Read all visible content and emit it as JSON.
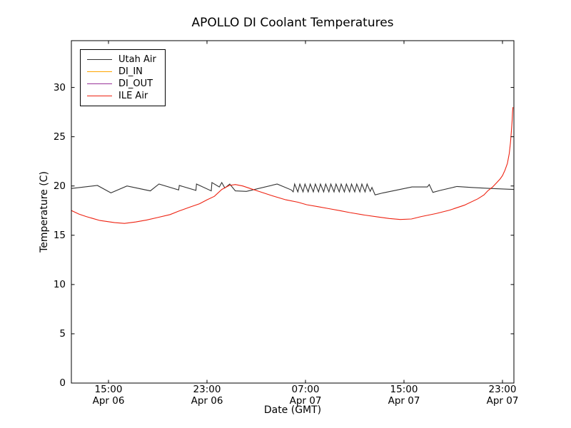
{
  "figure_title": "APOLLO DI Coolant Temperatures",
  "chart_data": {
    "type": "line",
    "title": "APOLLO DI Coolant Temperatures",
    "xlabel": "Date (GMT)",
    "ylabel": "Temperature (C)",
    "x_unit": "hours since Apr 06 00:00 GMT",
    "xlim_hours": [
      12.0,
      47.95
    ],
    "ylim": [
      0,
      34.75
    ],
    "grid": false,
    "legend_position": "upper left",
    "yticks": [
      0,
      5,
      10,
      15,
      20,
      25,
      30
    ],
    "xticks": [
      {
        "t": 15,
        "time": "15:00",
        "date": "Apr 06"
      },
      {
        "t": 23,
        "time": "23:00",
        "date": "Apr 06"
      },
      {
        "t": 31,
        "time": "07:00",
        "date": "Apr 07"
      },
      {
        "t": 39,
        "time": "15:00",
        "date": "Apr 07"
      },
      {
        "t": 47,
        "time": "23:00",
        "date": "Apr 07"
      }
    ],
    "series": [
      {
        "name": "Utah Air",
        "color": "#333333",
        "points": [
          [
            12.0,
            19.75
          ],
          [
            14.1,
            20.05
          ],
          [
            15.2,
            19.3
          ],
          [
            16.5,
            20.0
          ],
          [
            18.4,
            19.5
          ],
          [
            19.1,
            20.2
          ],
          [
            20.7,
            19.6
          ],
          [
            20.75,
            20.05
          ],
          [
            22.1,
            19.55
          ],
          [
            22.15,
            20.2
          ],
          [
            23.35,
            19.5
          ],
          [
            23.4,
            20.35
          ],
          [
            24.0,
            19.9
          ],
          [
            24.2,
            20.35
          ],
          [
            24.45,
            19.8
          ],
          [
            24.85,
            20.2
          ],
          [
            25.3,
            19.5
          ],
          [
            26.2,
            19.45
          ],
          [
            28.7,
            20.2
          ],
          [
            29.85,
            19.6
          ],
          [
            30.0,
            19.4
          ],
          [
            30.12,
            20.2
          ],
          [
            30.38,
            19.4
          ],
          [
            30.54,
            20.2
          ],
          [
            30.8,
            19.4
          ],
          [
            30.96,
            20.2
          ],
          [
            31.22,
            19.4
          ],
          [
            31.38,
            20.2
          ],
          [
            31.64,
            19.4
          ],
          [
            31.8,
            20.2
          ],
          [
            32.06,
            19.4
          ],
          [
            32.22,
            20.2
          ],
          [
            32.48,
            19.4
          ],
          [
            32.64,
            20.2
          ],
          [
            32.9,
            19.4
          ],
          [
            33.06,
            20.2
          ],
          [
            33.32,
            19.4
          ],
          [
            33.48,
            20.2
          ],
          [
            33.74,
            19.4
          ],
          [
            33.9,
            20.2
          ],
          [
            34.16,
            19.4
          ],
          [
            34.32,
            20.2
          ],
          [
            34.58,
            19.4
          ],
          [
            34.74,
            20.2
          ],
          [
            35.0,
            19.4
          ],
          [
            35.16,
            20.2
          ],
          [
            35.42,
            19.4
          ],
          [
            35.58,
            20.2
          ],
          [
            35.84,
            19.4
          ],
          [
            36.0,
            20.2
          ],
          [
            36.26,
            19.45
          ],
          [
            36.4,
            19.85
          ],
          [
            36.65,
            19.1
          ],
          [
            37.3,
            19.3
          ],
          [
            39.65,
            19.9
          ],
          [
            40.9,
            19.9
          ],
          [
            41.05,
            20.15
          ],
          [
            41.35,
            19.35
          ],
          [
            41.95,
            19.55
          ],
          [
            43.3,
            19.95
          ],
          [
            44.5,
            19.85
          ],
          [
            46.0,
            19.75
          ],
          [
            47.9,
            19.65
          ]
        ]
      },
      {
        "name": "DI_IN",
        "color": "#ffa500",
        "points": []
      },
      {
        "name": "DI_OUT",
        "color": "#993399",
        "points": []
      },
      {
        "name": "ILE Air",
        "color": "#ee2211",
        "points": [
          [
            12.0,
            17.5
          ],
          [
            12.6,
            17.15
          ],
          [
            13.2,
            16.9
          ],
          [
            14.3,
            16.5
          ],
          [
            15.5,
            16.28
          ],
          [
            16.3,
            16.2
          ],
          [
            17.2,
            16.35
          ],
          [
            18.1,
            16.55
          ],
          [
            19.0,
            16.8
          ],
          [
            20.0,
            17.1
          ],
          [
            20.7,
            17.45
          ],
          [
            21.6,
            17.85
          ],
          [
            22.4,
            18.2
          ],
          [
            23.0,
            18.6
          ],
          [
            23.6,
            18.95
          ],
          [
            24.2,
            19.65
          ],
          [
            24.8,
            20.05
          ],
          [
            25.3,
            20.15
          ],
          [
            25.9,
            20.0
          ],
          [
            26.5,
            19.75
          ],
          [
            27.1,
            19.5
          ],
          [
            28.2,
            19.05
          ],
          [
            29.4,
            18.6
          ],
          [
            30.4,
            18.35
          ],
          [
            31.1,
            18.1
          ],
          [
            32.0,
            17.9
          ],
          [
            32.9,
            17.7
          ],
          [
            33.8,
            17.5
          ],
          [
            34.6,
            17.3
          ],
          [
            35.8,
            17.05
          ],
          [
            36.9,
            16.85
          ],
          [
            37.8,
            16.7
          ],
          [
            38.7,
            16.6
          ],
          [
            39.6,
            16.65
          ],
          [
            40.4,
            16.9
          ],
          [
            41.6,
            17.2
          ],
          [
            42.7,
            17.55
          ],
          [
            43.9,
            18.05
          ],
          [
            45.0,
            18.7
          ],
          [
            45.5,
            19.1
          ],
          [
            45.8,
            19.5
          ],
          [
            46.2,
            19.9
          ],
          [
            46.5,
            20.3
          ],
          [
            46.8,
            20.7
          ],
          [
            47.0,
            21.05
          ],
          [
            47.2,
            21.6
          ],
          [
            47.4,
            22.3
          ],
          [
            47.55,
            23.3
          ],
          [
            47.65,
            24.4
          ],
          [
            47.72,
            25.5
          ],
          [
            47.78,
            26.6
          ],
          [
            47.82,
            27.5
          ],
          [
            47.85,
            28.0
          ]
        ]
      }
    ]
  }
}
